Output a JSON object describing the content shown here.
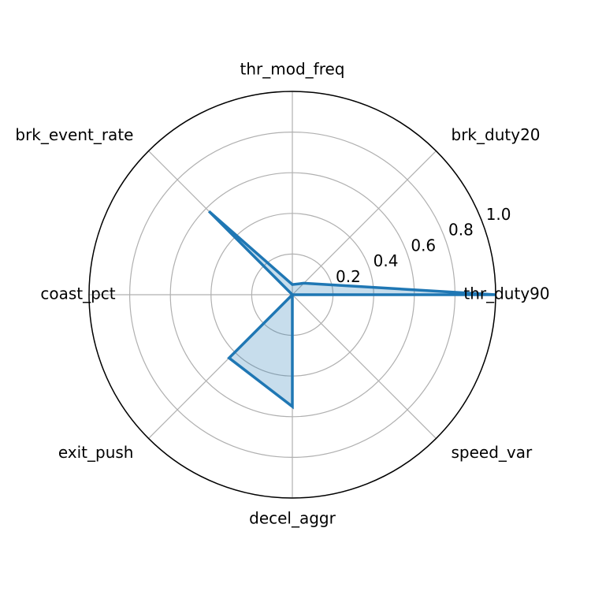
{
  "chart_data": {
    "type": "radar",
    "axes": [
      "thr_duty90",
      "brk_duty20",
      "thr_mod_freq",
      "brk_event_rate",
      "coast_pct",
      "exit_push",
      "decel_aggr",
      "speed_var"
    ],
    "series": [
      {
        "values": [
          1.0,
          0.08,
          0.05,
          0.58,
          0.0,
          0.44,
          0.55,
          0.0
        ]
      }
    ],
    "rlim": [
      0,
      1.0
    ],
    "r_ticks": [
      "0.2",
      "0.4",
      "0.6",
      "0.8",
      "1.0"
    ],
    "grid": true,
    "colors": {
      "line": "#1f77b4",
      "fill": "#1f77b4",
      "grid": "#b0b0b0",
      "frame": "#000000"
    }
  }
}
